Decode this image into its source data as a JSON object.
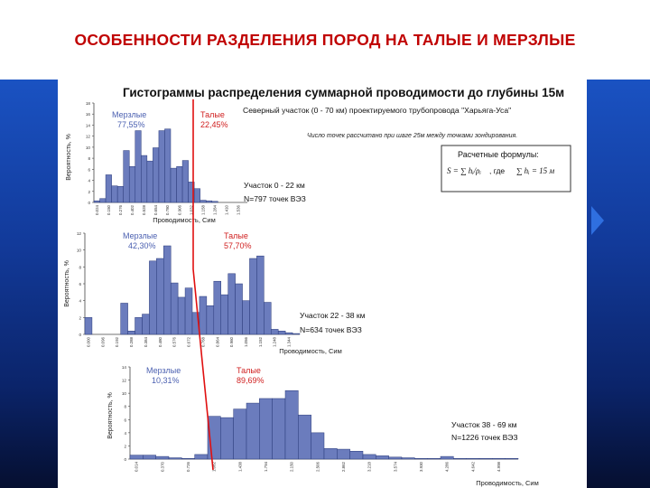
{
  "slide": {
    "title": "ОСОБЕННОСТИ РАЗДЕЛЕНИЯ ПОРОД НА ТАЛЫЕ И МЕРЗЛЫЕ"
  },
  "figure": {
    "title": "Гистограммы распределения суммарной проводимости до глубины 15м",
    "note1": "Северный участок (0 - 70 км) проектируемого трубопровода \"Харьяга-Уса\"",
    "note2": "Число точек рассчитано при шаге 25м между точками зондирования.",
    "formula_box": {
      "heading": "Расчетные формулы:",
      "formula_s": "S = ∑ hᵢ/ρᵢ",
      "formula_sep": ", где",
      "formula_h": "∑ hᵢ = 15 м"
    }
  },
  "colors": {
    "bar_fill": "#6b7cbd",
    "bar_stroke": "#2a3a7a",
    "frozen_text": "#4a5fb0",
    "thawed_text": "#d02020",
    "boundary_line": "#e01010",
    "background_panel": "#1a52c2"
  },
  "chart_data": [
    {
      "type": "bar",
      "title": "",
      "ylabel": "Вероятность, %",
      "xlabel": "Проводимость, Сим",
      "ylim": [
        0,
        18
      ],
      "yticks": [
        "0",
        "2",
        "4",
        "6",
        "8",
        "10",
        "12",
        "14",
        "16",
        "18"
      ],
      "categories": [
        "0.024",
        "0.087",
        "0.150",
        "0.213",
        "0.276",
        "0.339",
        "0.402",
        "0.465",
        "0.528",
        "0.591",
        "0.654",
        "0.717",
        "0.780",
        "0.843",
        "0.906",
        "0.969",
        "1.032",
        "1.095",
        "1.158",
        "1.221",
        "1.284",
        "1.347",
        "1.410",
        "1.473",
        "1.536",
        "1.599"
      ],
      "x_tick_labels": [
        "0.024",
        "0.150",
        "0.276",
        "0.402",
        "0.528",
        "0.654",
        "0.780",
        "0.906",
        "1.032",
        "1.158",
        "1.284",
        "1.410",
        "1.536"
      ],
      "values": [
        0.3,
        0.7,
        5.0,
        3.0,
        2.9,
        9.4,
        6.5,
        13.0,
        8.5,
        7.5,
        9.9,
        13.0,
        13.3,
        6.2,
        6.5,
        7.6,
        3.7,
        2.5,
        0.4,
        0.3,
        0.2,
        0,
        0,
        0,
        0,
        0
      ],
      "boundary_fraction": 0.455,
      "frozen_label": "Мерзлые",
      "frozen_percent": "77,55%",
      "thawed_label": "Талые",
      "thawed_percent": "22,45%",
      "section_label": "Участок 0 - 22 км",
      "points_label": "N=797 точек ВЭЗ"
    },
    {
      "type": "bar",
      "title": "",
      "ylabel": "Вероятность, %",
      "xlabel": "Проводимость, Сим",
      "ylim": [
        0,
        12
      ],
      "yticks": [
        "0",
        "2",
        "4",
        "6",
        "8",
        "10",
        "12"
      ],
      "categories": [
        "0.000",
        "0.048",
        "0.096",
        "0.144",
        "0.192",
        "0.240",
        "0.288",
        "0.336",
        "0.384",
        "0.432",
        "0.480",
        "0.528",
        "0.576",
        "0.624",
        "0.672",
        "0.720",
        "0.768",
        "0.816",
        "0.864",
        "0.912",
        "0.960",
        "1.008",
        "1.056",
        "1.104",
        "1.152",
        "1.200",
        "1.248",
        "1.296",
        "1.344",
        "1.392"
      ],
      "x_tick_labels": [
        "0.000",
        "0.096",
        "0.192",
        "0.288",
        "0.384",
        "0.480",
        "0.576",
        "0.672",
        "0.768",
        "0.864",
        "0.960",
        "1.056",
        "1.152",
        "1.248",
        "1.344"
      ],
      "values": [
        2.0,
        0,
        0,
        0,
        0,
        3.7,
        0.4,
        2.0,
        2.4,
        8.7,
        9.0,
        10.5,
        6.1,
        4.4,
        5.5,
        2.6,
        4.5,
        3.4,
        6.3,
        4.7,
        7.2,
        6.0,
        4.0,
        9.0,
        9.3,
        3.8,
        0.6,
        0.4,
        0.2,
        0.1
      ],
      "boundary_fraction": 0.47,
      "frozen_label": "Мерзлые",
      "frozen_percent": "42,30%",
      "thawed_label": "Талые",
      "thawed_percent": "57,70%",
      "section_label": "Участок 22 - 38 км",
      "points_label": "N=634 точек ВЭЗ"
    },
    {
      "type": "bar",
      "title": "",
      "ylabel": "Вероятность, %",
      "xlabel": "Проводимость, Сим",
      "ylim": [
        0,
        14
      ],
      "yticks": [
        "0",
        "2",
        "4",
        "6",
        "8",
        "10",
        "12",
        "14"
      ],
      "categories": [
        "0.014",
        "0.192",
        "0.370",
        "0.548",
        "0.726",
        "0.904",
        "1.082",
        "1.260",
        "1.438",
        "1.616",
        "1.794",
        "1.972",
        "2.150",
        "2.328",
        "2.506",
        "2.684",
        "2.862",
        "3.040",
        "3.218",
        "3.396",
        "3.574",
        "3.752",
        "3.930",
        "4.108",
        "4.286",
        "4.464",
        "4.642",
        "4.820",
        "4.998",
        "5.176"
      ],
      "x_tick_labels": [
        "0.014",
        "0.370",
        "0.726",
        "1.082",
        "1.438",
        "1.794",
        "2.150",
        "2.506",
        "2.862",
        "3.218",
        "3.574",
        "3.930",
        "4.286",
        "4.642",
        "4.998"
      ],
      "values": [
        0.6,
        0.6,
        0.4,
        0.2,
        0.1,
        0.7,
        6.5,
        6.3,
        7.6,
        8.5,
        9.2,
        9.2,
        10.4,
        6.7,
        4.0,
        1.6,
        1.5,
        1.2,
        0.7,
        0.5,
        0.3,
        0.2,
        0.1,
        0.1,
        0.4,
        0.1,
        0.1,
        0.1,
        0.1,
        0.1
      ],
      "boundary_fraction": 0.155,
      "frozen_label": "Мерзлые",
      "frozen_percent": "10,31%",
      "thawed_label": "Талые",
      "thawed_percent": "89,69%",
      "section_label": "Участок 38 - 69 км",
      "points_label": "N=1226 точек ВЭЗ"
    }
  ]
}
